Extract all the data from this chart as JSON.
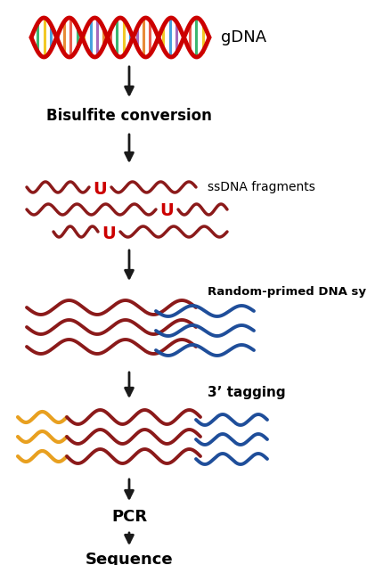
{
  "background_color": "#ffffff",
  "arrow_color": "#1a1a1a",
  "dark_red": "#8B1A1A",
  "blue": "#1F4E9A",
  "yellow": "#E8A020",
  "red_helix": "#CC0000",
  "labels": {
    "gdna": "gDNA",
    "bisulfite": "Bisulfite conversion",
    "ssdna": "ssDNA fragments",
    "random_primed": "Random-primed DNA synthesis",
    "tagging": "3’ tagging",
    "pcr": "PCR",
    "sequence": "Sequence"
  }
}
